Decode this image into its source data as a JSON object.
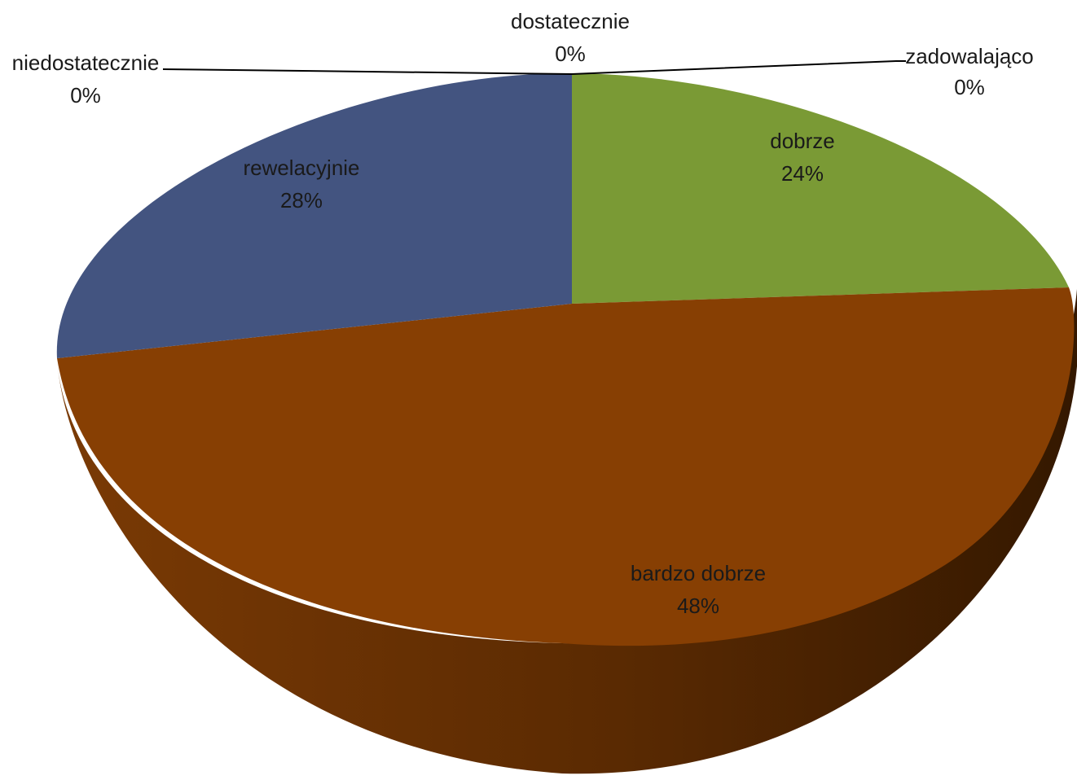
{
  "chart_data": {
    "type": "pie",
    "three_d": true,
    "title": "",
    "categories": [
      "niedostatecznie",
      "dostatecznie",
      "zadowalająco",
      "dobrze",
      "bardzo dobrze",
      "rewelacyjnie"
    ],
    "values": [
      0,
      0,
      0,
      24,
      48,
      28
    ],
    "percent_labels": [
      "0%",
      "0%",
      "0%",
      "24%",
      "48%",
      "28%"
    ],
    "colors": [
      "#4a7ebb",
      "#be4b48",
      "#98b954",
      "#7a9a35",
      "#873f03",
      "#435480"
    ],
    "side_colors": {
      "dobrze": "#5d7a26",
      "bardzo dobrze": "#6b3102",
      "rewelacyjnie": "#33415f"
    },
    "legend": "none",
    "label_position": "inside, with leader lines for zero slices"
  }
}
